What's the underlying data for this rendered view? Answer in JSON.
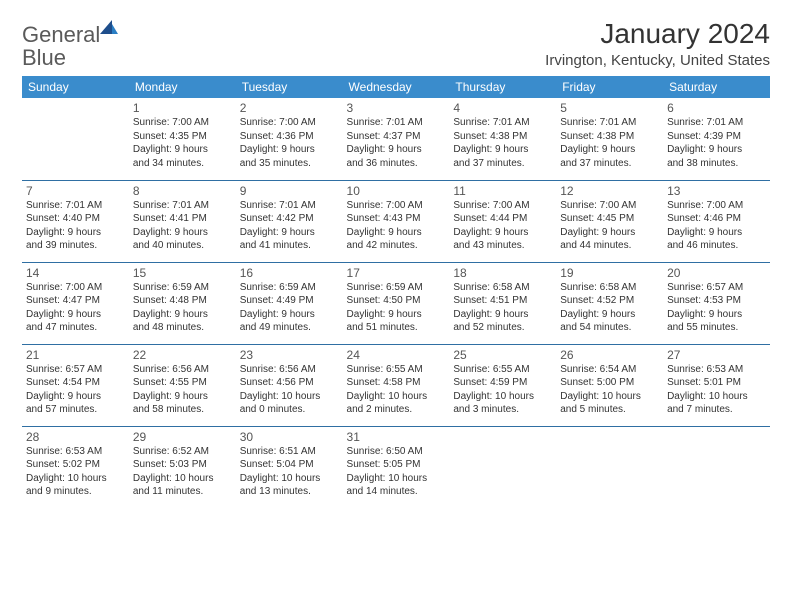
{
  "logo": {
    "word1": "General",
    "word2": "Blue"
  },
  "title": "January 2024",
  "location": "Irvington, Kentucky, United States",
  "colors": {
    "header_bg": "#3a8ccc",
    "header_text": "#ffffff",
    "row_border": "#2f6fa3",
    "logo_gray": "#5a5a5a",
    "logo_blue": "#2a7ec4",
    "text": "#333333",
    "background": "#ffffff"
  },
  "days_of_week": [
    "Sunday",
    "Monday",
    "Tuesday",
    "Wednesday",
    "Thursday",
    "Friday",
    "Saturday"
  ],
  "weeks": [
    [
      null,
      {
        "n": "1",
        "sr": "Sunrise: 7:00 AM",
        "ss": "Sunset: 4:35 PM",
        "dl1": "Daylight: 9 hours",
        "dl2": "and 34 minutes."
      },
      {
        "n": "2",
        "sr": "Sunrise: 7:00 AM",
        "ss": "Sunset: 4:36 PM",
        "dl1": "Daylight: 9 hours",
        "dl2": "and 35 minutes."
      },
      {
        "n": "3",
        "sr": "Sunrise: 7:01 AM",
        "ss": "Sunset: 4:37 PM",
        "dl1": "Daylight: 9 hours",
        "dl2": "and 36 minutes."
      },
      {
        "n": "4",
        "sr": "Sunrise: 7:01 AM",
        "ss": "Sunset: 4:38 PM",
        "dl1": "Daylight: 9 hours",
        "dl2": "and 37 minutes."
      },
      {
        "n": "5",
        "sr": "Sunrise: 7:01 AM",
        "ss": "Sunset: 4:38 PM",
        "dl1": "Daylight: 9 hours",
        "dl2": "and 37 minutes."
      },
      {
        "n": "6",
        "sr": "Sunrise: 7:01 AM",
        "ss": "Sunset: 4:39 PM",
        "dl1": "Daylight: 9 hours",
        "dl2": "and 38 minutes."
      }
    ],
    [
      {
        "n": "7",
        "sr": "Sunrise: 7:01 AM",
        "ss": "Sunset: 4:40 PM",
        "dl1": "Daylight: 9 hours",
        "dl2": "and 39 minutes."
      },
      {
        "n": "8",
        "sr": "Sunrise: 7:01 AM",
        "ss": "Sunset: 4:41 PM",
        "dl1": "Daylight: 9 hours",
        "dl2": "and 40 minutes."
      },
      {
        "n": "9",
        "sr": "Sunrise: 7:01 AM",
        "ss": "Sunset: 4:42 PM",
        "dl1": "Daylight: 9 hours",
        "dl2": "and 41 minutes."
      },
      {
        "n": "10",
        "sr": "Sunrise: 7:00 AM",
        "ss": "Sunset: 4:43 PM",
        "dl1": "Daylight: 9 hours",
        "dl2": "and 42 minutes."
      },
      {
        "n": "11",
        "sr": "Sunrise: 7:00 AM",
        "ss": "Sunset: 4:44 PM",
        "dl1": "Daylight: 9 hours",
        "dl2": "and 43 minutes."
      },
      {
        "n": "12",
        "sr": "Sunrise: 7:00 AM",
        "ss": "Sunset: 4:45 PM",
        "dl1": "Daylight: 9 hours",
        "dl2": "and 44 minutes."
      },
      {
        "n": "13",
        "sr": "Sunrise: 7:00 AM",
        "ss": "Sunset: 4:46 PM",
        "dl1": "Daylight: 9 hours",
        "dl2": "and 46 minutes."
      }
    ],
    [
      {
        "n": "14",
        "sr": "Sunrise: 7:00 AM",
        "ss": "Sunset: 4:47 PM",
        "dl1": "Daylight: 9 hours",
        "dl2": "and 47 minutes."
      },
      {
        "n": "15",
        "sr": "Sunrise: 6:59 AM",
        "ss": "Sunset: 4:48 PM",
        "dl1": "Daylight: 9 hours",
        "dl2": "and 48 minutes."
      },
      {
        "n": "16",
        "sr": "Sunrise: 6:59 AM",
        "ss": "Sunset: 4:49 PM",
        "dl1": "Daylight: 9 hours",
        "dl2": "and 49 minutes."
      },
      {
        "n": "17",
        "sr": "Sunrise: 6:59 AM",
        "ss": "Sunset: 4:50 PM",
        "dl1": "Daylight: 9 hours",
        "dl2": "and 51 minutes."
      },
      {
        "n": "18",
        "sr": "Sunrise: 6:58 AM",
        "ss": "Sunset: 4:51 PM",
        "dl1": "Daylight: 9 hours",
        "dl2": "and 52 minutes."
      },
      {
        "n": "19",
        "sr": "Sunrise: 6:58 AM",
        "ss": "Sunset: 4:52 PM",
        "dl1": "Daylight: 9 hours",
        "dl2": "and 54 minutes."
      },
      {
        "n": "20",
        "sr": "Sunrise: 6:57 AM",
        "ss": "Sunset: 4:53 PM",
        "dl1": "Daylight: 9 hours",
        "dl2": "and 55 minutes."
      }
    ],
    [
      {
        "n": "21",
        "sr": "Sunrise: 6:57 AM",
        "ss": "Sunset: 4:54 PM",
        "dl1": "Daylight: 9 hours",
        "dl2": "and 57 minutes."
      },
      {
        "n": "22",
        "sr": "Sunrise: 6:56 AM",
        "ss": "Sunset: 4:55 PM",
        "dl1": "Daylight: 9 hours",
        "dl2": "and 58 minutes."
      },
      {
        "n": "23",
        "sr": "Sunrise: 6:56 AM",
        "ss": "Sunset: 4:56 PM",
        "dl1": "Daylight: 10 hours",
        "dl2": "and 0 minutes."
      },
      {
        "n": "24",
        "sr": "Sunrise: 6:55 AM",
        "ss": "Sunset: 4:58 PM",
        "dl1": "Daylight: 10 hours",
        "dl2": "and 2 minutes."
      },
      {
        "n": "25",
        "sr": "Sunrise: 6:55 AM",
        "ss": "Sunset: 4:59 PM",
        "dl1": "Daylight: 10 hours",
        "dl2": "and 3 minutes."
      },
      {
        "n": "26",
        "sr": "Sunrise: 6:54 AM",
        "ss": "Sunset: 5:00 PM",
        "dl1": "Daylight: 10 hours",
        "dl2": "and 5 minutes."
      },
      {
        "n": "27",
        "sr": "Sunrise: 6:53 AM",
        "ss": "Sunset: 5:01 PM",
        "dl1": "Daylight: 10 hours",
        "dl2": "and 7 minutes."
      }
    ],
    [
      {
        "n": "28",
        "sr": "Sunrise: 6:53 AM",
        "ss": "Sunset: 5:02 PM",
        "dl1": "Daylight: 10 hours",
        "dl2": "and 9 minutes."
      },
      {
        "n": "29",
        "sr": "Sunrise: 6:52 AM",
        "ss": "Sunset: 5:03 PM",
        "dl1": "Daylight: 10 hours",
        "dl2": "and 11 minutes."
      },
      {
        "n": "30",
        "sr": "Sunrise: 6:51 AM",
        "ss": "Sunset: 5:04 PM",
        "dl1": "Daylight: 10 hours",
        "dl2": "and 13 minutes."
      },
      {
        "n": "31",
        "sr": "Sunrise: 6:50 AM",
        "ss": "Sunset: 5:05 PM",
        "dl1": "Daylight: 10 hours",
        "dl2": "and 14 minutes."
      },
      null,
      null,
      null
    ]
  ]
}
